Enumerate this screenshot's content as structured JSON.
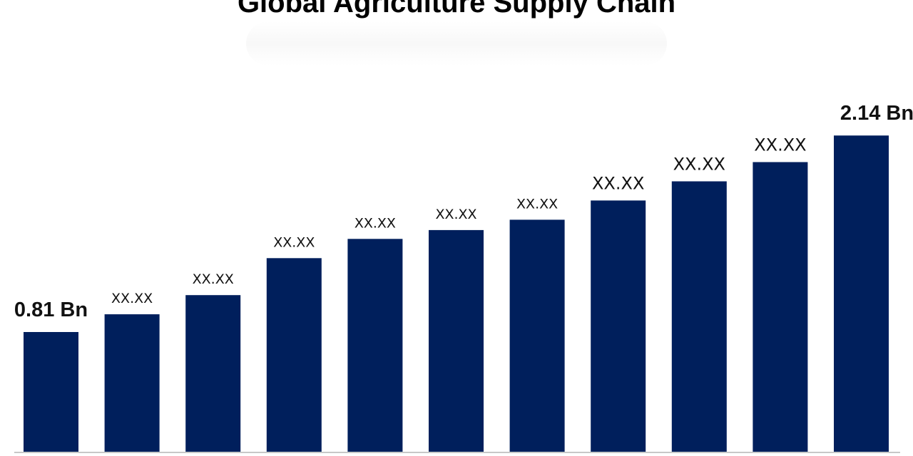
{
  "title": "Global Agriculture Supply Chain",
  "colors": {
    "bar": "#001f5c",
    "axis": "#c8c8c8"
  },
  "chart_data": {
    "type": "bar",
    "title": "Global Agriculture Supply Chain",
    "xlabel": "",
    "ylabel": "",
    "grid": false,
    "legend": "none",
    "ylim": [
      0,
      2.6
    ],
    "values": [
      0.81,
      0.93,
      1.06,
      1.31,
      1.44,
      1.5,
      1.57,
      1.7,
      1.83,
      1.96,
      2.14
    ],
    "data_labels": [
      "0.81 Bn",
      "XX.XX",
      "XX.XX",
      "XX.XX",
      "XX.XX",
      "XX.XX",
      "XX.XX",
      "XX.XX",
      "XX.XX",
      "XX.XX",
      "2.14 Bn"
    ]
  }
}
